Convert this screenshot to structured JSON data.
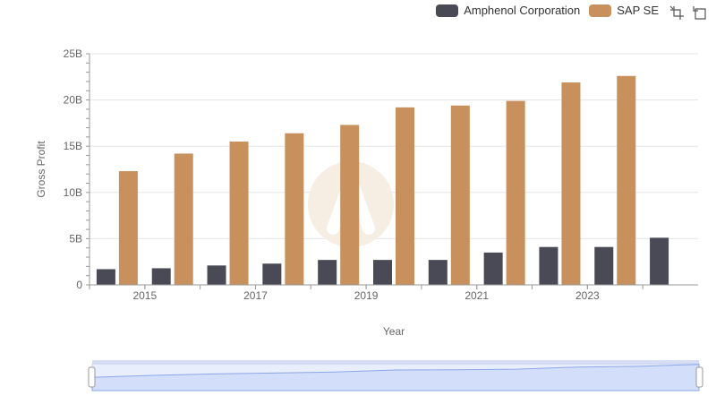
{
  "legend": [
    {
      "name": "Amphenol Corporation",
      "color": "#4a4a57"
    },
    {
      "name": "SAP SE",
      "color": "#c8905c"
    }
  ],
  "toolbar": {
    "icons": [
      "zoom-icon",
      "restore-icon"
    ]
  },
  "chart_data": {
    "type": "bar",
    "xlabel": "Year",
    "ylabel": "Gross Profit",
    "categories": [
      "2014",
      "2015",
      "2016",
      "2017",
      "2018",
      "2019",
      "2020",
      "2021",
      "2022",
      "2023",
      "2024"
    ],
    "x_tick_labels": [
      "2015",
      "2017",
      "2019",
      "2021",
      "2023"
    ],
    "y_tick_labels": [
      "0",
      "5B",
      "10B",
      "15B",
      "20B",
      "25B"
    ],
    "ylim": [
      0,
      25000000000
    ],
    "grid": true,
    "legend_position": "top-right",
    "series": [
      {
        "name": "Amphenol Corporation",
        "color": "#4a4a57",
        "values": [
          1700000000,
          1800000000,
          2100000000,
          2300000000,
          2700000000,
          2700000000,
          2700000000,
          3500000000,
          4100000000,
          4100000000,
          5100000000
        ]
      },
      {
        "name": "SAP SE",
        "color": "#c8905c",
        "values": [
          12300000000,
          14200000000,
          15500000000,
          16400000000,
          17300000000,
          19200000000,
          19400000000,
          19900000000,
          21900000000,
          22600000000,
          null
        ]
      }
    ]
  }
}
